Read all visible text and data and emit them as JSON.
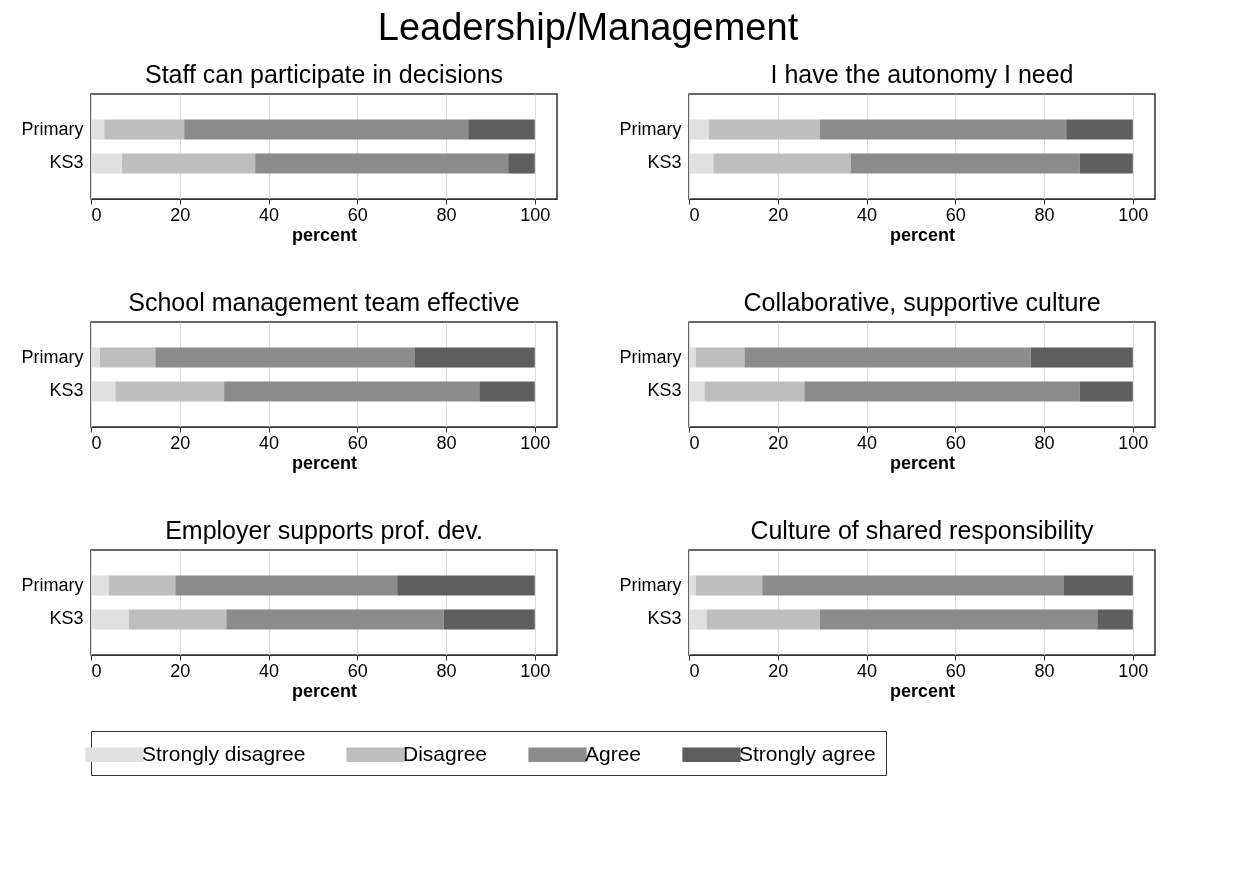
{
  "chart_data": [
    {
      "type": "other",
      "title": "Leadership/Management"
    },
    {
      "type": "bar",
      "orientation": "horizontal",
      "stacked": true,
      "title": "Staff can participate in decisions",
      "xlabel": "percent",
      "categories": [
        "Primary",
        "KS3"
      ],
      "xlim": [
        0,
        105
      ],
      "xticks": [
        0,
        20,
        40,
        60,
        80,
        100
      ],
      "grid": "x",
      "legend": "bottom",
      "series": [
        {
          "name": "Strongly disagree",
          "color": "#e0e0e0",
          "values": [
            3,
            7
          ]
        },
        {
          "name": "Disagree",
          "color": "#bebebe",
          "values": [
            18,
            30
          ]
        },
        {
          "name": "Agree",
          "color": "#8c8c8c",
          "values": [
            64,
            57
          ]
        },
        {
          "name": "Strongly agree",
          "color": "#5e5e5e",
          "values": [
            15,
            6
          ]
        }
      ]
    },
    {
      "type": "bar",
      "orientation": "horizontal",
      "stacked": true,
      "title": "I have the autonomy I need",
      "xlabel": "percent",
      "categories": [
        "Primary",
        "KS3"
      ],
      "xlim": [
        0,
        105
      ],
      "xticks": [
        0,
        20,
        40,
        60,
        80,
        100
      ],
      "grid": "x",
      "legend": "bottom",
      "series": [
        {
          "name": "Strongly disagree",
          "color": "#e0e0e0",
          "values": [
            4.5,
            5.5
          ]
        },
        {
          "name": "Disagree",
          "color": "#bebebe",
          "values": [
            25,
            31
          ]
        },
        {
          "name": "Agree",
          "color": "#8c8c8c",
          "values": [
            55.5,
            51.5
          ]
        },
        {
          "name": "Strongly agree",
          "color": "#5e5e5e",
          "values": [
            15,
            12
          ]
        }
      ]
    },
    {
      "type": "bar",
      "orientation": "horizontal",
      "stacked": true,
      "title": "School management team effective",
      "xlabel": "percent",
      "categories": [
        "Primary",
        "KS3"
      ],
      "xlim": [
        0,
        105
      ],
      "xticks": [
        0,
        20,
        40,
        60,
        80,
        100
      ],
      "grid": "x",
      "legend": "bottom",
      "series": [
        {
          "name": "Strongly disagree",
          "color": "#e0e0e0",
          "values": [
            2,
            5.5
          ]
        },
        {
          "name": "Disagree",
          "color": "#bebebe",
          "values": [
            12.5,
            24.5
          ]
        },
        {
          "name": "Agree",
          "color": "#8c8c8c",
          "values": [
            58.5,
            57.5
          ]
        },
        {
          "name": "Strongly agree",
          "color": "#5e5e5e",
          "values": [
            27,
            12.5
          ]
        }
      ]
    },
    {
      "type": "bar",
      "orientation": "horizontal",
      "stacked": true,
      "title": "Collaborative, supportive culture",
      "xlabel": "percent",
      "categories": [
        "Primary",
        "KS3"
      ],
      "xlim": [
        0,
        105
      ],
      "xticks": [
        0,
        20,
        40,
        60,
        80,
        100
      ],
      "grid": "x",
      "legend": "bottom",
      "series": [
        {
          "name": "Strongly disagree",
          "color": "#e0e0e0",
          "values": [
            1.5,
            3.5
          ]
        },
        {
          "name": "Disagree",
          "color": "#bebebe",
          "values": [
            11,
            22.5
          ]
        },
        {
          "name": "Agree",
          "color": "#8c8c8c",
          "values": [
            64.5,
            62
          ]
        },
        {
          "name": "Strongly agree",
          "color": "#5e5e5e",
          "values": [
            23,
            12
          ]
        }
      ]
    },
    {
      "type": "bar",
      "orientation": "horizontal",
      "stacked": true,
      "title": "Employer supports prof. dev.",
      "xlabel": "percent",
      "categories": [
        "Primary",
        "KS3"
      ],
      "xlim": [
        0,
        105
      ],
      "xticks": [
        0,
        20,
        40,
        60,
        80,
        100
      ],
      "grid": "x",
      "legend": "bottom",
      "series": [
        {
          "name": "Strongly disagree",
          "color": "#e0e0e0",
          "values": [
            4,
            8.5
          ]
        },
        {
          "name": "Disagree",
          "color": "#bebebe",
          "values": [
            15,
            22
          ]
        },
        {
          "name": "Agree",
          "color": "#8c8c8c",
          "values": [
            50,
            49
          ]
        },
        {
          "name": "Strongly agree",
          "color": "#5e5e5e",
          "values": [
            31,
            20.5
          ]
        }
      ]
    },
    {
      "type": "bar",
      "orientation": "horizontal",
      "stacked": true,
      "title": "Culture of shared responsibility",
      "xlabel": "percent",
      "categories": [
        "Primary",
        "KS3"
      ],
      "xlim": [
        0,
        105
      ],
      "xticks": [
        0,
        20,
        40,
        60,
        80,
        100
      ],
      "grid": "x",
      "legend": "bottom",
      "series": [
        {
          "name": "Strongly disagree",
          "color": "#e0e0e0",
          "values": [
            1.5,
            4
          ]
        },
        {
          "name": "Disagree",
          "color": "#bebebe",
          "values": [
            15,
            25.5
          ]
        },
        {
          "name": "Agree",
          "color": "#8c8c8c",
          "values": [
            68,
            62.5
          ]
        },
        {
          "name": "Strongly agree",
          "color": "#5e5e5e",
          "values": [
            15.5,
            8
          ]
        }
      ]
    }
  ]
}
